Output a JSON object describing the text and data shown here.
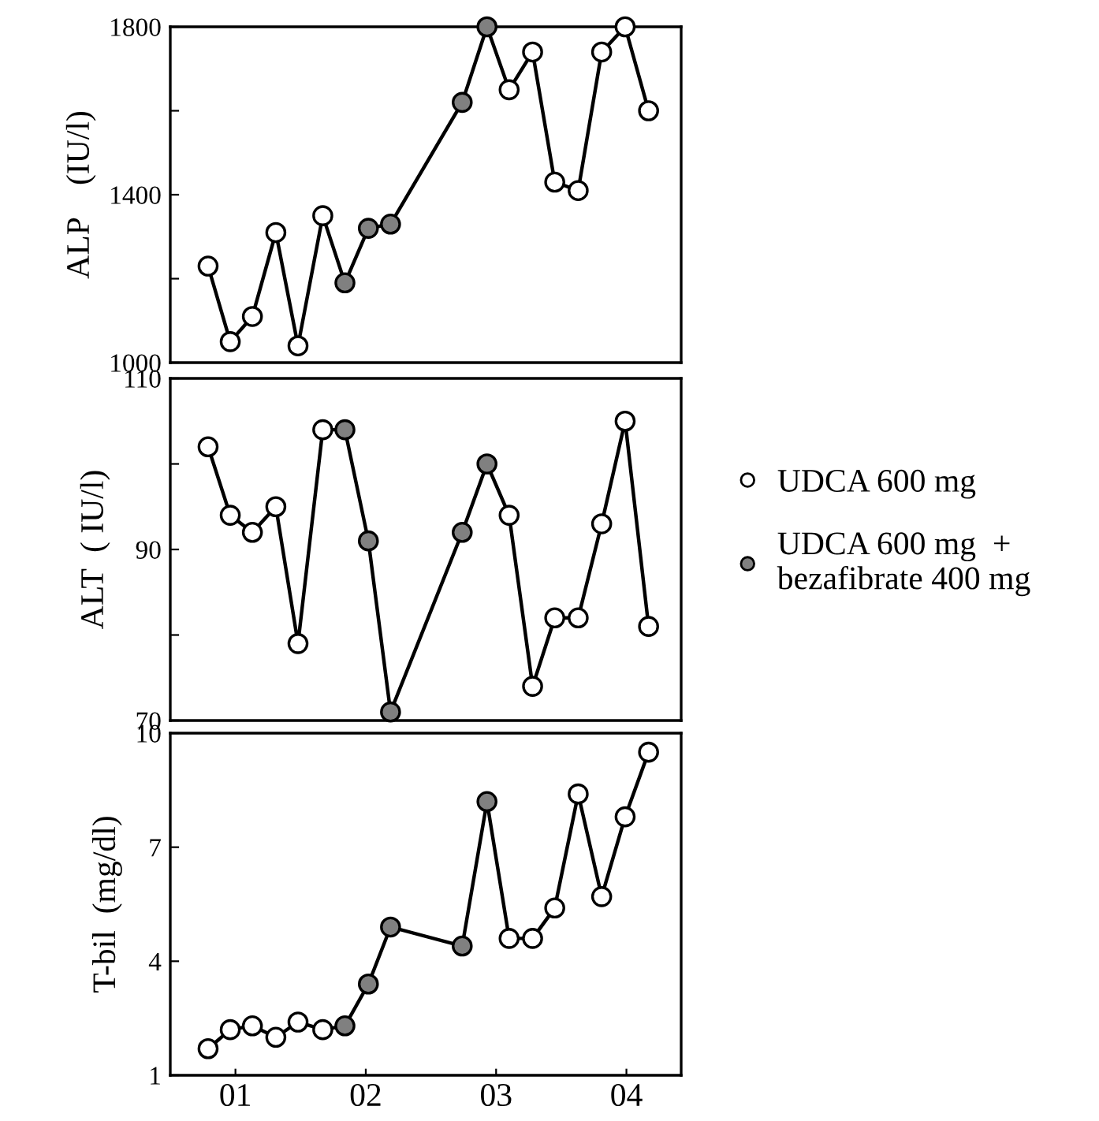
{
  "chart_data": [
    {
      "type": "line",
      "ylabel": "ALP    (IU/l)",
      "x": [
        0.79,
        0.96,
        1.13,
        1.31,
        1.48,
        1.67,
        1.84,
        2.02,
        2.19,
        2.74,
        2.93,
        3.1,
        3.28,
        3.45,
        3.63,
        3.81,
        3.99,
        4.17
      ],
      "xlim": [
        0.5,
        4.42
      ],
      "ylim": [
        1000,
        1800
      ],
      "yticks": [
        1000,
        {
          "value": 1200,
          "label": null
        },
        1400,
        {
          "value": 1600,
          "label": null
        },
        1800
      ],
      "tick_labels": "y",
      "legend": false,
      "series": [
        {
          "color": "#000000",
          "values": [
            1230,
            1050,
            1110,
            1310,
            1040,
            1350,
            1190,
            1320,
            1330,
            1620,
            1800,
            1650,
            1740,
            1430,
            1410,
            1740,
            1800,
            1600
          ]
        },
        {
          "type": "scatter",
          "marker": "circle",
          "color": "#ffffff",
          "values": [
            1230,
            1050,
            1110,
            1310,
            1040,
            1350,
            null,
            null,
            null,
            null,
            null,
            1650,
            1740,
            1430,
            1410,
            1740,
            1800,
            1600
          ]
        },
        {
          "type": "scatter",
          "marker": "circle",
          "color": "#808080",
          "values": [
            null,
            null,
            null,
            null,
            null,
            null,
            1190,
            1320,
            1330,
            1620,
            1800,
            null,
            null,
            null,
            null,
            null,
            null,
            null
          ]
        }
      ]
    },
    {
      "type": "line",
      "ylabel": "ALT  ( IU/l)",
      "x": [
        0.79,
        0.96,
        1.13,
        1.31,
        1.48,
        1.67,
        1.84,
        2.02,
        2.19,
        2.74,
        2.93,
        3.1,
        3.28,
        3.45,
        3.63,
        3.81,
        3.99,
        4.17
      ],
      "xlim": [
        0.5,
        4.42
      ],
      "ylim": [
        70,
        110
      ],
      "yticks": [
        70,
        {
          "value": 80,
          "label": null
        },
        90,
        {
          "value": 100,
          "label": null
        },
        110
      ],
      "tick_labels": "y",
      "legend": "right",
      "series": [
        {
          "color": "#000000",
          "values": [
            102,
            94,
            92,
            95,
            79,
            104,
            104,
            91,
            71,
            92,
            100,
            94,
            74,
            82,
            82,
            93,
            105,
            81
          ]
        },
        {
          "type": "scatter",
          "marker": "circle",
          "name": "UDCA 600 mg",
          "color": "#ffffff",
          "values": [
            102,
            94,
            92,
            95,
            79,
            104,
            null,
            null,
            null,
            null,
            null,
            94,
            74,
            82,
            82,
            93,
            105,
            81
          ]
        },
        {
          "type": "scatter",
          "marker": "circle",
          "name": "UDCA 600 mg  +\nbezafibrate 400 mg",
          "color": "#808080",
          "values": [
            null,
            null,
            null,
            null,
            null,
            null,
            104,
            91,
            71,
            92,
            100,
            null,
            null,
            null,
            null,
            null,
            null,
            null
          ]
        }
      ]
    },
    {
      "type": "line",
      "ylabel": "T-bil  (mg/dl)",
      "x": [
        0.79,
        0.96,
        1.13,
        1.31,
        1.48,
        1.67,
        1.84,
        2.02,
        2.19,
        2.74,
        2.93,
        3.1,
        3.28,
        3.45,
        3.63,
        3.81,
        3.99,
        4.17
      ],
      "xlim": [
        0.5,
        4.42
      ],
      "xticks": [
        {
          "value": 1,
          "label": "01"
        },
        {
          "value": 2,
          "label": "02"
        },
        {
          "value": 3,
          "label": "03"
        },
        {
          "value": 4,
          "label": "04"
        }
      ],
      "ylim": [
        1,
        10
      ],
      "yticks": [
        1,
        4,
        7,
        10
      ],
      "legend": false,
      "series": [
        {
          "color": "#000000",
          "values": [
            1.7,
            2.2,
            2.3,
            2.0,
            2.4,
            2.2,
            2.3,
            3.4,
            4.9,
            4.4,
            8.2,
            4.6,
            4.6,
            5.4,
            8.4,
            5.7,
            7.8,
            9.5
          ]
        },
        {
          "type": "scatter",
          "marker": "circle",
          "color": "#ffffff",
          "values": [
            1.7,
            2.2,
            2.3,
            2.0,
            2.4,
            2.2,
            null,
            null,
            null,
            null,
            null,
            4.6,
            4.6,
            5.4,
            8.4,
            5.7,
            7.8,
            9.5
          ]
        },
        {
          "type": "scatter",
          "marker": "circle",
          "color": "#808080",
          "values": [
            null,
            null,
            null,
            null,
            null,
            null,
            2.3,
            3.4,
            4.9,
            4.4,
            8.2,
            null,
            null,
            null,
            null,
            null,
            null,
            null
          ]
        }
      ]
    }
  ]
}
